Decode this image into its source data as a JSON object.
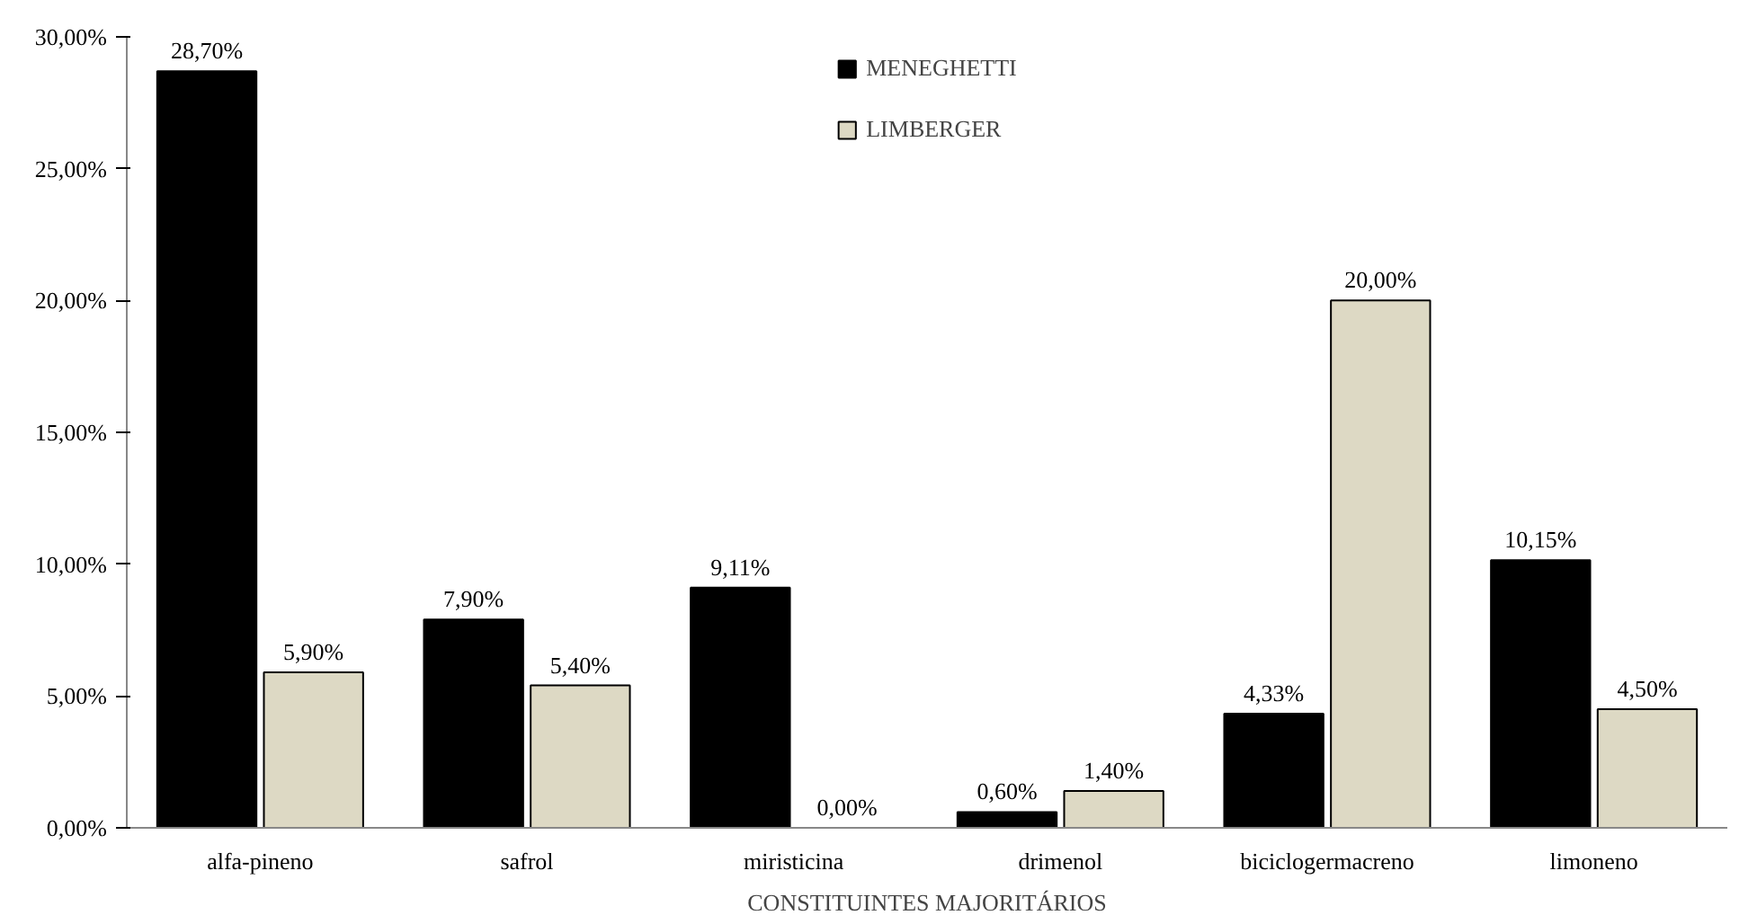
{
  "chart_data": {
    "type": "bar",
    "xlabel": "CONSTITUINTES MAJORITÁRIOS",
    "categories": [
      "alfa-pineno",
      "safrol",
      "miristicina",
      "drimenol",
      "biciclogermacreno",
      "limoneno"
    ],
    "series": [
      {
        "name": "MENEGHETTI",
        "color": "#000000",
        "values": [
          28.7,
          7.9,
          9.11,
          0.6,
          4.33,
          10.15
        ],
        "value_labels": [
          "28,70%",
          "7,90%",
          "9,11%",
          "0,60%",
          "4,33%",
          "10,15%"
        ]
      },
      {
        "name": "LIMBERGER",
        "color": "#ddd9c4",
        "values": [
          5.9,
          5.4,
          0.0,
          1.4,
          20.0,
          4.5
        ],
        "value_labels": [
          "5,90%",
          "5,40%",
          "0,00%",
          "1,40%",
          "20,00%",
          "4,50%"
        ]
      }
    ],
    "ylim": [
      0,
      30
    ],
    "yticks": [
      {
        "value": 0,
        "label": "0,00%"
      },
      {
        "value": 5,
        "label": "5,00%"
      },
      {
        "value": 10,
        "label": "10,00%"
      },
      {
        "value": 15,
        "label": "15,00%"
      },
      {
        "value": 20,
        "label": "20,00%"
      },
      {
        "value": 25,
        "label": "25,00%"
      },
      {
        "value": 30,
        "label": "30,00%"
      }
    ],
    "grid": false,
    "legend": "top"
  }
}
